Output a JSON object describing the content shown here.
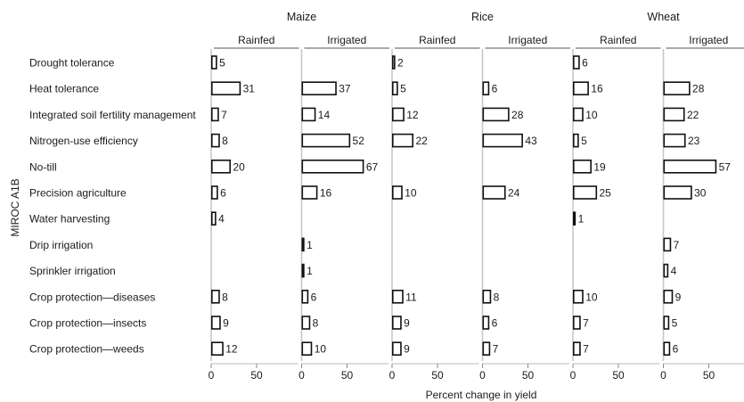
{
  "chart_data": {
    "type": "bar",
    "side_label": "MIROC A1B",
    "xlabel": "Percent change in yield",
    "xlim": [
      0,
      100
    ],
    "xticks": [
      0,
      50
    ],
    "crops": [
      "Maize",
      "Rice",
      "Wheat"
    ],
    "water_regimes": [
      "Rainfed",
      "Irrigated"
    ],
    "categories": [
      "Drought tolerance",
      "Heat tolerance",
      "Integrated soil fertility management",
      "Nitrogen-use efficiency",
      "No-till",
      "Precision agriculture",
      "Water harvesting",
      "Drip irrigation",
      "Sprinkler irrigation",
      "Crop protection—diseases",
      "Crop protection—insects",
      "Crop protection—weeds"
    ],
    "series": [
      {
        "crop": "Maize",
        "regime": "Rainfed",
        "values": [
          5,
          31,
          7,
          8,
          20,
          6,
          4,
          null,
          null,
          8,
          9,
          12
        ]
      },
      {
        "crop": "Maize",
        "regime": "Irrigated",
        "values": [
          null,
          37,
          14,
          52,
          67,
          16,
          null,
          1,
          1,
          6,
          8,
          10
        ]
      },
      {
        "crop": "Rice",
        "regime": "Rainfed",
        "values": [
          2,
          5,
          12,
          22,
          null,
          10,
          null,
          null,
          null,
          11,
          9,
          9
        ]
      },
      {
        "crop": "Rice",
        "regime": "Irrigated",
        "values": [
          null,
          6,
          28,
          43,
          null,
          24,
          null,
          null,
          null,
          8,
          6,
          7
        ]
      },
      {
        "crop": "Wheat",
        "regime": "Rainfed",
        "values": [
          6,
          16,
          10,
          5,
          19,
          25,
          1,
          null,
          null,
          10,
          7,
          7
        ]
      },
      {
        "crop": "Wheat",
        "regime": "Irrigated",
        "values": [
          null,
          28,
          22,
          23,
          57,
          30,
          null,
          7,
          4,
          9,
          5,
          6
        ]
      }
    ]
  }
}
